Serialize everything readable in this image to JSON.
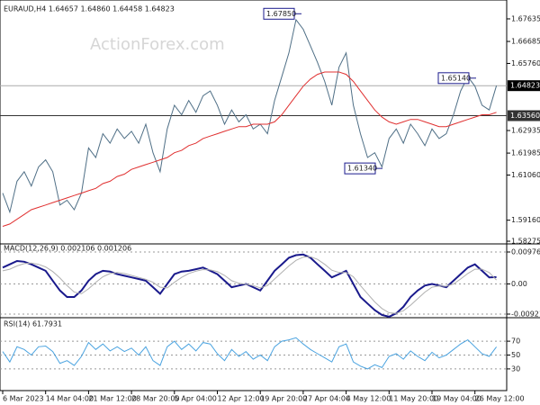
{
  "watermark": "ActionForex.com",
  "chart_data": [
    {
      "type": "line",
      "title": "EURAUD,H4 1.64657 1.64860 1.64458 1.64823",
      "categories": [
        "6 Mar 2023",
        null,
        null,
        null,
        null,
        null,
        "14 Mar 04:00",
        null,
        null,
        null,
        null,
        null,
        "21 Mar 12:00",
        null,
        null,
        null,
        null,
        null,
        "28 Mar 20:00",
        null,
        null,
        null,
        null,
        null,
        "5 Apr 04:00",
        null,
        null,
        null,
        null,
        null,
        "12 Apr 12:00",
        null,
        null,
        null,
        null,
        null,
        "19 Apr 20:00",
        null,
        null,
        null,
        null,
        null,
        "27 Apr 04:00",
        null,
        null,
        null,
        null,
        null,
        "4 May 12:00",
        null,
        null,
        null,
        null,
        null,
        "11 May 20:00",
        null,
        null,
        null,
        null,
        null,
        "19 May 04:00",
        null,
        null,
        null,
        null,
        null,
        "26 May 12:00",
        null,
        null,
        null
      ],
      "series": [
        {
          "color": "#4f6f86",
          "values": [
            1.603,
            1.595,
            1.608,
            1.612,
            1.606,
            1.614,
            1.617,
            1.612,
            1.598,
            1.6,
            1.596,
            1.603,
            1.622,
            1.618,
            1.628,
            1.624,
            1.63,
            1.626,
            1.629,
            1.624,
            1.632,
            1.62,
            1.612,
            1.63,
            1.64,
            1.636,
            1.642,
            1.637,
            1.644,
            1.646,
            1.64,
            1.632,
            1.638,
            1.633,
            1.636,
            1.63,
            1.632,
            1.628,
            1.642,
            1.652,
            1.662,
            1.676,
            1.672,
            1.665,
            1.658,
            1.65,
            1.64,
            1.656,
            1.662,
            1.64,
            1.628,
            1.618,
            1.62,
            1.614,
            1.626,
            1.63,
            1.624,
            1.632,
            1.628,
            1.623,
            1.63,
            1.626,
            1.628,
            1.636,
            1.646,
            1.652,
            1.648,
            1.64,
            1.638,
            1.64823
          ]
        },
        {
          "color": "#e03030",
          "values": [
            1.589,
            1.59,
            1.592,
            1.594,
            1.596,
            1.597,
            1.598,
            1.599,
            1.6,
            1.601,
            1.602,
            1.603,
            1.604,
            1.605,
            1.607,
            1.608,
            1.61,
            1.611,
            1.613,
            1.614,
            1.615,
            1.616,
            1.617,
            1.618,
            1.62,
            1.621,
            1.623,
            1.624,
            1.626,
            1.627,
            1.628,
            1.629,
            1.63,
            1.631,
            1.631,
            1.632,
            1.632,
            1.632,
            1.633,
            1.636,
            1.64,
            1.644,
            1.648,
            1.651,
            1.653,
            1.654,
            1.654,
            1.654,
            1.653,
            1.65,
            1.646,
            1.642,
            1.638,
            1.635,
            1.633,
            1.632,
            1.633,
            1.634,
            1.634,
            1.633,
            1.632,
            1.631,
            1.631,
            1.632,
            1.633,
            1.634,
            1.635,
            1.636,
            1.636,
            1.637
          ]
        }
      ],
      "ylim": [
        1.582,
        1.6824
      ],
      "yticks": [
        1.67635,
        1.66685,
        {
          "value": 1.6576,
          "label": "1.65760"
        },
        1.62935,
        1.61985,
        {
          "value": 1.6106,
          "label": "1.61060"
        },
        {
          "value": 1.5916,
          "label": "1.59160"
        },
        1.58275
      ],
      "last_price": 1.64823,
      "reference_line": {
        "value": 1.6356,
        "label": "1.63560"
      },
      "annotations": [
        {
          "value": 1.6785,
          "label": "1.67850"
        },
        {
          "value": 1.6514,
          "label": "1.65140"
        },
        {
          "value": 1.6134,
          "label": "1.61340"
        }
      ]
    },
    {
      "type": "line",
      "title": "MACD(12,26,9) 0.002106 0.001206",
      "series": [
        {
          "color": "#1a1a8c",
          "values": [
            0.005,
            0.006,
            0.007,
            0.0068,
            0.006,
            0.005,
            0.004,
            0.001,
            -0.002,
            -0.004,
            -0.004,
            -0.002,
            0.001,
            0.003,
            0.004,
            0.0038,
            0.003,
            0.0025,
            0.002,
            0.0015,
            0.001,
            -0.001,
            -0.003,
            0.0,
            0.003,
            0.0038,
            0.004,
            0.0045,
            0.005,
            0.004,
            0.003,
            0.001,
            -0.001,
            -0.0005,
            0.0,
            -0.001,
            -0.002,
            0.001,
            0.004,
            0.006,
            0.008,
            0.0088,
            0.009,
            0.008,
            0.006,
            0.004,
            0.002,
            0.003,
            0.004,
            0.0,
            -0.004,
            -0.006,
            -0.008,
            -0.0095,
            -0.01,
            -0.009,
            -0.007,
            -0.004,
            -0.002,
            -0.0005,
            0.0,
            -0.0005,
            -0.001,
            0.001,
            0.003,
            0.005,
            0.006,
            0.004,
            0.002,
            0.0021
          ]
        },
        {
          "color": "#b0b0b0",
          "values": [
            0.004,
            0.0045,
            0.0055,
            0.0062,
            0.0064,
            0.006,
            0.0052,
            0.0038,
            0.0018,
            -0.0005,
            -0.0025,
            -0.003,
            -0.0015,
            0.0005,
            0.0022,
            0.0032,
            0.0035,
            0.0032,
            0.0026,
            0.002,
            0.0014,
            0.0005,
            -0.001,
            -0.0012,
            0.0005,
            0.002,
            0.0032,
            0.0039,
            0.0044,
            0.0043,
            0.0038,
            0.0026,
            0.001,
            0.0002,
            -0.0001,
            -0.0005,
            -0.0012,
            -0.0005,
            0.0015,
            0.0035,
            0.0055,
            0.0072,
            0.0082,
            0.0083,
            0.0075,
            0.006,
            0.0042,
            0.0035,
            0.0035,
            0.0022,
            -0.0005,
            -0.003,
            -0.0055,
            -0.0075,
            -0.0088,
            -0.009,
            -0.0082,
            -0.0065,
            -0.0045,
            -0.0025,
            -0.001,
            -0.0006,
            -0.0007,
            0.0,
            0.0015,
            0.0032,
            0.0045,
            0.0045,
            0.0035,
            0.0012
          ]
        }
      ],
      "ylim": [
        -0.01004,
        0.01196
      ],
      "yticks": [
        0.009761,
        {
          "value": 0,
          "label": "0.00"
        },
        -0.009216
      ]
    },
    {
      "type": "line",
      "title": "RSI(14) 61.7931",
      "series": [
        {
          "color": "#4aa3e0",
          "values": [
            55,
            40,
            62,
            58,
            50,
            62,
            63,
            55,
            38,
            42,
            35,
            48,
            68,
            58,
            66,
            56,
            62,
            55,
            60,
            50,
            62,
            42,
            35,
            62,
            70,
            58,
            66,
            56,
            68,
            66,
            52,
            42,
            58,
            48,
            55,
            44,
            50,
            42,
            62,
            70,
            72,
            75,
            66,
            58,
            52,
            46,
            40,
            62,
            66,
            40,
            34,
            30,
            36,
            32,
            48,
            52,
            44,
            56,
            48,
            42,
            54,
            46,
            50,
            58,
            66,
            72,
            62,
            52,
            48,
            61.7931
          ]
        }
      ],
      "ylim": [
        0,
        100
      ],
      "yticks": [
        70,
        50,
        30
      ]
    }
  ]
}
